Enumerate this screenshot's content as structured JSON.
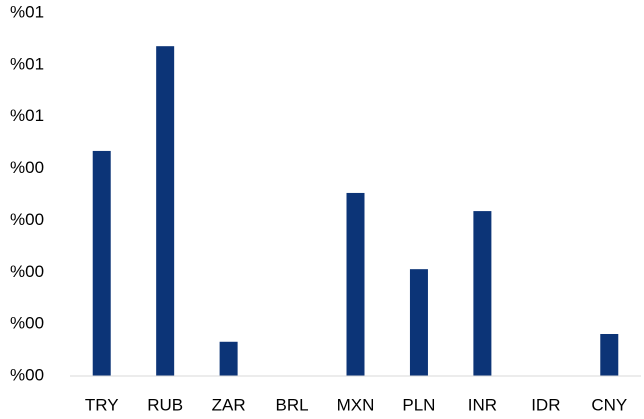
{
  "chart_data": {
    "type": "bar",
    "categories": [
      "TRY",
      "RUB",
      "ZAR",
      "BRL",
      "MXN",
      "PLN",
      "INR",
      "IDR",
      "CNY"
    ],
    "values": [
      0.434,
      0.636,
      0.066,
      0,
      0.353,
      0.206,
      0.318,
      0,
      0.081
    ],
    "color": "#0c3477",
    "ylim": [
      0,
      0.7
    ],
    "yticks": [
      {
        "value": 0,
        "label": "%00"
      },
      {
        "value": 0.1,
        "label": "%00"
      },
      {
        "value": 0.2,
        "label": "%00"
      },
      {
        "value": 0.3,
        "label": "%00"
      },
      {
        "value": 0.4,
        "label": "%00"
      },
      {
        "value": 0.5,
        "label": "%01"
      },
      {
        "value": 0.6,
        "label": "%01"
      },
      {
        "value": 0.7,
        "label": "%01"
      }
    ],
    "grid": false
  }
}
